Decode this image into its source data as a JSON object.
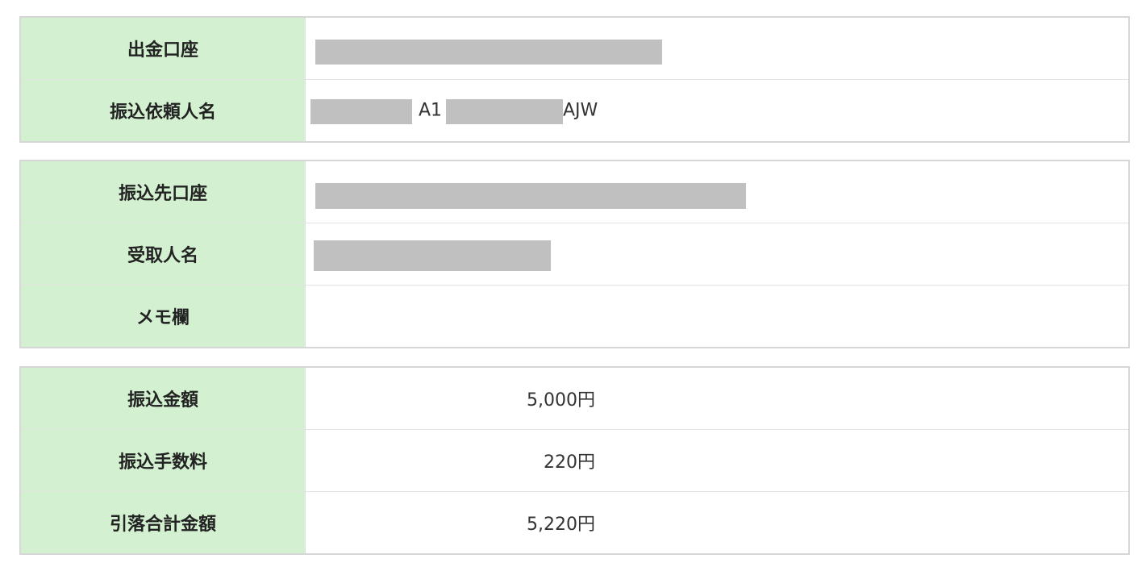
{
  "tables": [
    {
      "rows": [
        {
          "label": "出金口座"
        },
        {
          "label": "振込依頼人名",
          "values": [
            "A1",
            "AJW"
          ]
        }
      ]
    },
    {
      "rows": [
        {
          "label": "振込先口座"
        },
        {
          "label": "受取人名"
        },
        {
          "label": "メモ欄"
        }
      ]
    },
    {
      "rows": [
        {
          "label": "振込金額",
          "value": "5,000円"
        },
        {
          "label": "振込手数料",
          "value": "220円"
        },
        {
          "label": "引落合計金額",
          "value": "5,220円"
        }
      ]
    }
  ]
}
